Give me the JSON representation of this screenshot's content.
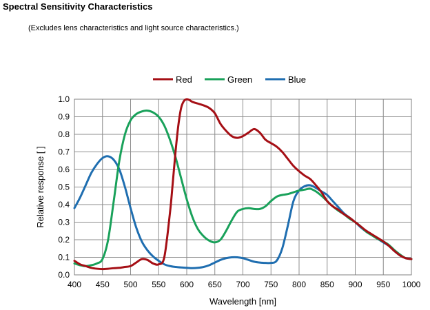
{
  "header": {
    "title": "Spectral Sensitivity Characteristics",
    "subtitle": "(Excludes lens characteristics and light source characteristics.)"
  },
  "chart_data": {
    "type": "line",
    "xlabel": "Wavelength [nm]",
    "ylabel": "Relative response [ ]",
    "xlim": [
      400,
      1000
    ],
    "ylim": [
      0,
      1
    ],
    "xticks": [
      400,
      450,
      500,
      550,
      600,
      650,
      700,
      750,
      800,
      850,
      900,
      950,
      1000
    ],
    "xtick_labels": [
      "400",
      "450",
      "500",
      "550",
      "600",
      "650",
      "700",
      "750",
      "800",
      "850",
      "900",
      "950",
      "1000"
    ],
    "yticks": [
      0,
      0.1,
      0.2,
      0.3,
      0.4,
      0.5,
      0.6,
      0.7,
      0.8,
      0.9,
      1.0
    ],
    "ytick_labels": [
      "0.0",
      "0.1",
      "0.2",
      "0.3",
      "0.4",
      "0.5",
      "0.6",
      "0.7",
      "0.8",
      "0.9",
      "1.0"
    ],
    "grid": true,
    "legend_position": "top",
    "series": [
      {
        "name": "Red",
        "color": "#a50f15",
        "x": [
          400,
          410,
          420,
          430,
          440,
          450,
          460,
          470,
          480,
          490,
          500,
          510,
          520,
          530,
          540,
          550,
          560,
          570,
          575,
          580,
          585,
          590,
          595,
          600,
          605,
          610,
          620,
          630,
          640,
          650,
          660,
          670,
          680,
          690,
          700,
          710,
          720,
          730,
          740,
          750,
          760,
          770,
          780,
          790,
          800,
          810,
          820,
          830,
          840,
          850,
          860,
          870,
          880,
          890,
          900,
          910,
          920,
          930,
          940,
          950,
          960,
          970,
          980,
          990,
          1000
        ],
        "y": [
          0.08,
          0.06,
          0.05,
          0.04,
          0.035,
          0.033,
          0.035,
          0.038,
          0.04,
          0.045,
          0.05,
          0.07,
          0.09,
          0.085,
          0.065,
          0.06,
          0.1,
          0.35,
          0.52,
          0.7,
          0.85,
          0.95,
          0.99,
          1.0,
          0.995,
          0.985,
          0.975,
          0.965,
          0.95,
          0.92,
          0.86,
          0.82,
          0.79,
          0.78,
          0.79,
          0.81,
          0.83,
          0.81,
          0.77,
          0.75,
          0.73,
          0.7,
          0.66,
          0.62,
          0.59,
          0.565,
          0.545,
          0.51,
          0.47,
          0.42,
          0.39,
          0.37,
          0.345,
          0.325,
          0.3,
          0.275,
          0.25,
          0.23,
          0.21,
          0.19,
          0.165,
          0.135,
          0.11,
          0.095,
          0.09
        ]
      },
      {
        "name": "Green",
        "color": "#19a15a",
        "x": [
          400,
          410,
          420,
          430,
          440,
          450,
          460,
          470,
          480,
          490,
          500,
          510,
          520,
          530,
          540,
          550,
          560,
          570,
          580,
          590,
          600,
          610,
          620,
          630,
          640,
          650,
          660,
          670,
          680,
          690,
          700,
          710,
          720,
          730,
          740,
          750,
          760,
          770,
          780,
          790,
          800,
          810,
          820,
          830,
          840,
          850,
          860,
          870,
          880,
          890,
          900,
          910,
          920,
          930,
          940,
          950,
          960,
          970,
          980,
          990,
          1000
        ],
        "y": [
          0.065,
          0.055,
          0.05,
          0.055,
          0.065,
          0.09,
          0.2,
          0.42,
          0.65,
          0.8,
          0.88,
          0.915,
          0.93,
          0.935,
          0.925,
          0.9,
          0.85,
          0.77,
          0.67,
          0.55,
          0.43,
          0.33,
          0.26,
          0.22,
          0.195,
          0.185,
          0.2,
          0.25,
          0.31,
          0.36,
          0.375,
          0.38,
          0.375,
          0.375,
          0.39,
          0.42,
          0.445,
          0.455,
          0.46,
          0.47,
          0.48,
          0.485,
          0.49,
          0.475,
          0.45,
          0.42,
          0.39,
          0.365,
          0.345,
          0.32,
          0.3,
          0.275,
          0.245,
          0.225,
          0.205,
          0.19,
          0.17,
          0.14,
          0.115,
          0.095,
          0.09
        ]
      },
      {
        "name": "Blue",
        "color": "#1f6eb0",
        "x": [
          400,
          410,
          420,
          430,
          440,
          450,
          460,
          470,
          480,
          490,
          500,
          510,
          520,
          530,
          540,
          550,
          560,
          570,
          580,
          590,
          600,
          610,
          620,
          630,
          640,
          650,
          660,
          670,
          680,
          690,
          700,
          710,
          720,
          730,
          740,
          750,
          760,
          770,
          780,
          790,
          800,
          810,
          820,
          830,
          840,
          850,
          860,
          870,
          880,
          890,
          900,
          910,
          920,
          930,
          940,
          950,
          960,
          970,
          980,
          990,
          1000
        ],
        "y": [
          0.38,
          0.44,
          0.51,
          0.58,
          0.63,
          0.665,
          0.675,
          0.655,
          0.6,
          0.5,
          0.38,
          0.27,
          0.19,
          0.14,
          0.105,
          0.08,
          0.06,
          0.05,
          0.045,
          0.042,
          0.04,
          0.038,
          0.04,
          0.045,
          0.055,
          0.07,
          0.085,
          0.095,
          0.1,
          0.1,
          0.095,
          0.085,
          0.075,
          0.07,
          0.068,
          0.068,
          0.08,
          0.15,
          0.28,
          0.42,
          0.48,
          0.505,
          0.51,
          0.495,
          0.475,
          0.455,
          0.42,
          0.385,
          0.35,
          0.325,
          0.3,
          0.27,
          0.245,
          0.225,
          0.205,
          0.185,
          0.165,
          0.135,
          0.11,
          0.095,
          0.09
        ]
      }
    ]
  }
}
